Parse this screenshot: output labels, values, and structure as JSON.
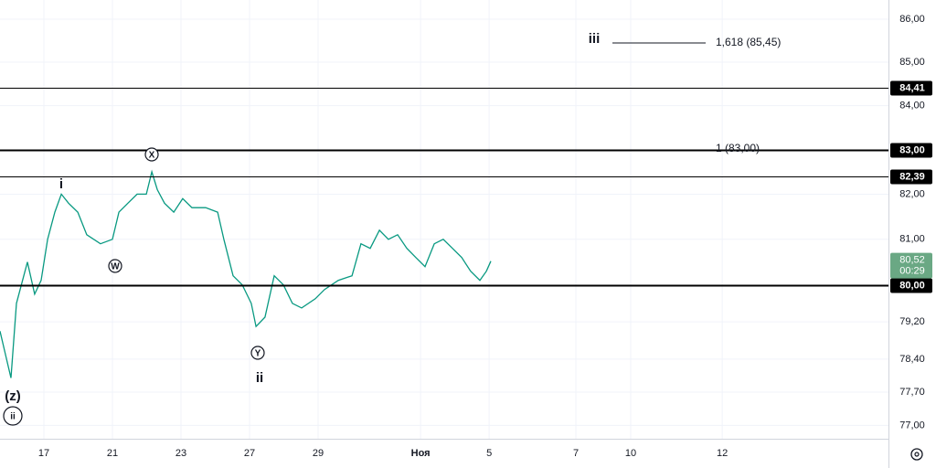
{
  "chart_data": {
    "type": "line",
    "log_scale": true,
    "grid": true,
    "color": "#089981",
    "x": [
      0,
      0.32,
      0.48,
      0.8,
      1.01,
      1.2,
      1.39,
      1.6,
      1.79,
      2,
      2.27,
      2.53,
      2.93,
      3.28,
      3.47,
      3.73,
      4,
      4.27,
      4.43,
      4.59,
      4.8,
      5.07,
      5.33,
      5.6,
      6,
      6.35,
      6.53,
      6.8,
      7.07,
      7.33,
      7.47,
      7.73,
      8,
      8.27,
      8.53,
      8.8,
      9.2,
      9.47,
      9.87,
      10.27,
      10.53,
      10.8,
      11.07,
      11.33,
      11.6,
      11.87,
      12.13,
      12.4,
      12.67,
      12.93,
      13.2,
      13.47,
      13.73,
      14,
      14.19,
      14.32
    ],
    "values": [
      79.0,
      78.0,
      79.6,
      80.5,
      79.8,
      80.1,
      81.0,
      81.6,
      82.0,
      81.8,
      81.6,
      81.1,
      80.9,
      81.0,
      81.6,
      81.8,
      82.0,
      82.0,
      82.5,
      82.1,
      81.8,
      81.6,
      81.9,
      81.7,
      81.7,
      81.6,
      81.0,
      80.2,
      80.0,
      79.6,
      79.1,
      79.3,
      80.2,
      80.0,
      79.6,
      79.5,
      79.7,
      79.9,
      80.1,
      80.2,
      80.9,
      80.8,
      81.2,
      81.0,
      81.1,
      80.8,
      80.6,
      80.4,
      80.9,
      81.0,
      80.8,
      80.6,
      80.3,
      80.1,
      80.3,
      80.52
    ],
    "xlim": [
      0,
      25.92
    ],
    "xticks": [
      {
        "value": 1.28,
        "label": "17"
      },
      {
        "value": 3.28,
        "label": "21"
      },
      {
        "value": 5.28,
        "label": "23"
      },
      {
        "value": 7.28,
        "label": "27"
      },
      {
        "value": 9.28,
        "label": "29"
      },
      {
        "value": 12.27,
        "label": "Ноя"
      },
      {
        "value": 14.27,
        "label": "5"
      },
      {
        "value": 16.8,
        "label": "7"
      },
      {
        "value": 18.4,
        "label": "10"
      },
      {
        "value": 21.07,
        "label": "12"
      }
    ],
    "ylim": [
      76.72,
      86.45
    ],
    "yticks": [
      {
        "value": 86,
        "label": "86,00"
      },
      {
        "value": 85,
        "label": "85,00"
      },
      {
        "value": 84,
        "label": "84,00"
      },
      {
        "value": 82,
        "label": "82,00"
      },
      {
        "value": 81,
        "label": "81,00"
      },
      {
        "value": 79.2,
        "label": "79,20"
      },
      {
        "value": 78.4,
        "label": "78,40"
      },
      {
        "value": 77.7,
        "label": "77,70"
      },
      {
        "value": 77,
        "label": "77,00"
      }
    ],
    "levels": [
      {
        "value": 84.41,
        "label": "84,41",
        "line_width": 1
      },
      {
        "value": 83,
        "label": "83,00",
        "line_width": 2
      },
      {
        "value": 82.39,
        "label": "82,39",
        "line_width": 1
      },
      {
        "value": 80,
        "label": "80,00",
        "line_width": 2
      }
    ],
    "last_price": {
      "value": 80.52,
      "label": "80,52",
      "timer": "00:29",
      "color": "#6aa884"
    },
    "fib_labels": [
      "1,618 (85,45)",
      "1 (83,00)"
    ],
    "annotations": [
      {
        "text": "iii",
        "circled": false
      },
      {
        "text": "i",
        "circled": false
      },
      {
        "text": "X",
        "circled": true
      },
      {
        "text": "W",
        "circled": true
      },
      {
        "text": "Y",
        "circled": true
      },
      {
        "text": "ii",
        "circled": false
      },
      {
        "text": "(z)",
        "circled": false
      },
      {
        "text": "ii",
        "circled": true
      }
    ]
  }
}
